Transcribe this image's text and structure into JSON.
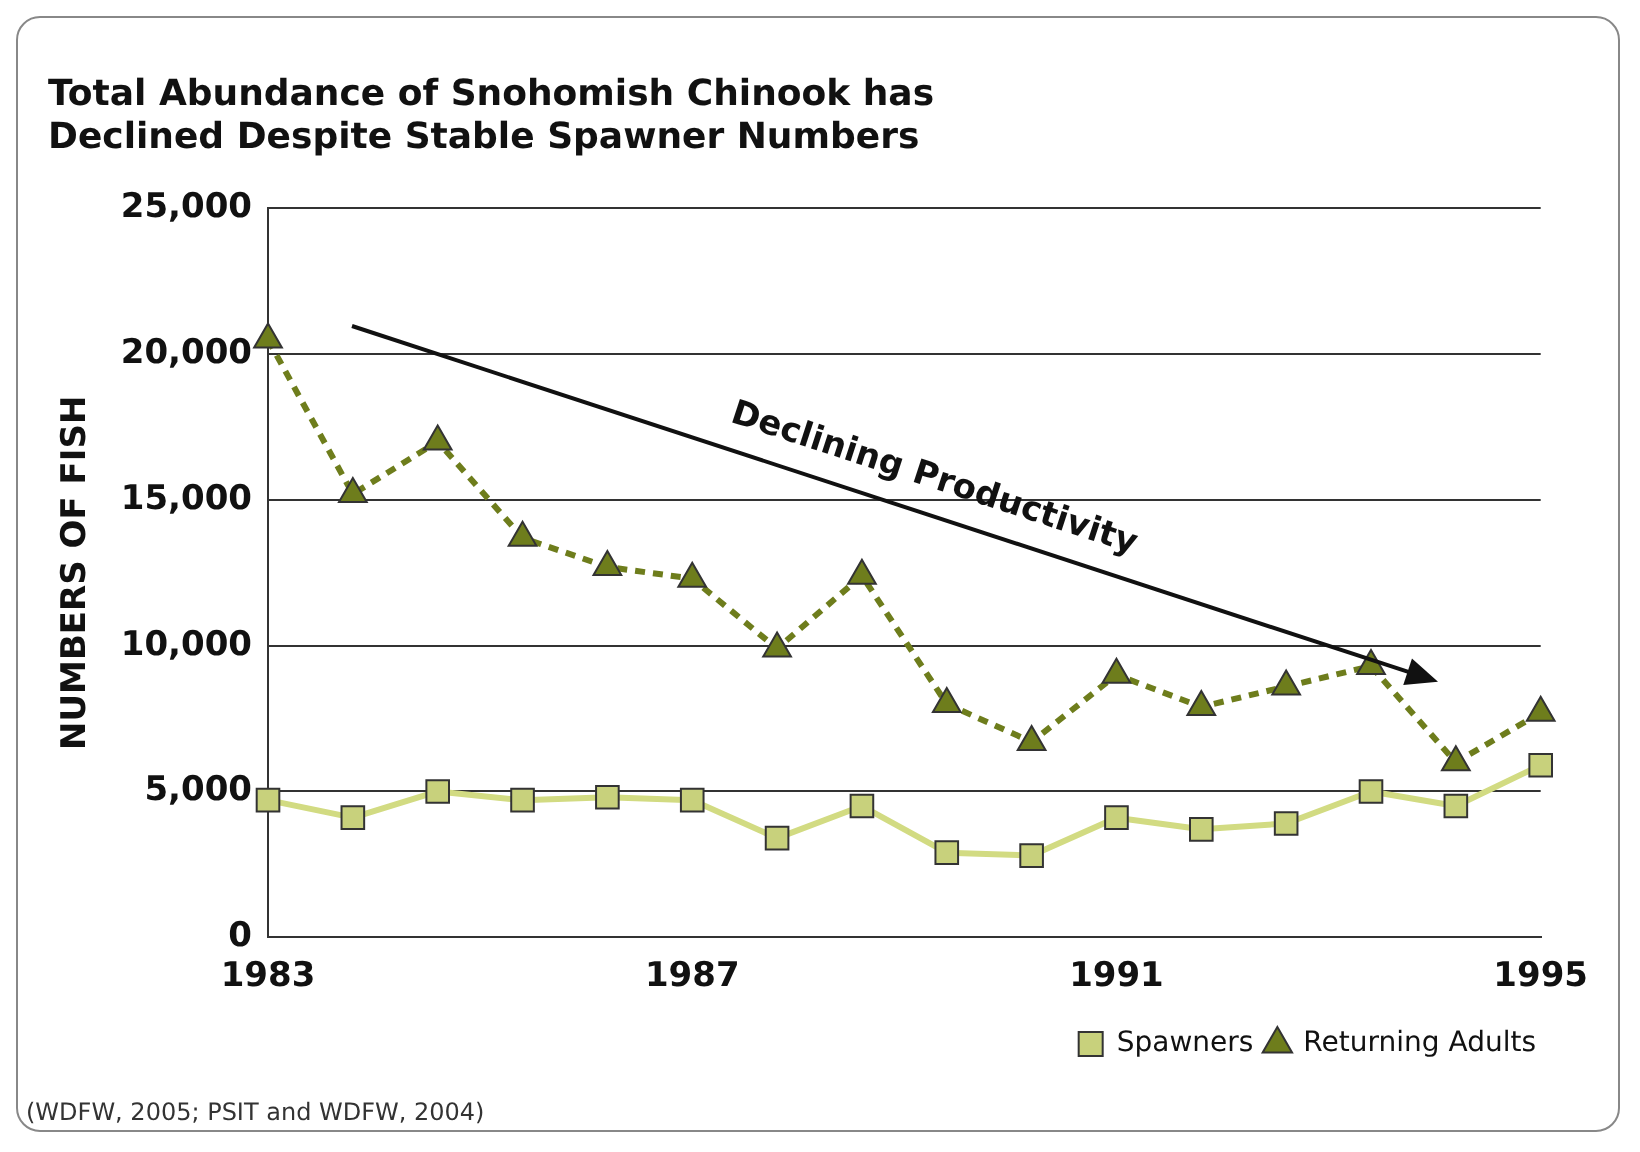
{
  "chart_data": {
    "type": "line",
    "title": "Total Abundance of Snohomish Chinook has\nDeclined Despite Stable Spawner Numbers",
    "ylabel": "NUMBERS OF FISH",
    "categories": [
      "1983",
      null,
      null,
      null,
      null,
      "1987",
      null,
      null,
      null,
      null,
      "1991",
      null,
      null,
      null,
      null,
      "1995"
    ],
    "series": [
      {
        "name": "Spawners",
        "color": "#c8d17c",
        "marker": "square",
        "line_style": "solid",
        "values": [
          4700,
          4100,
          5000,
          4700,
          4800,
          4700,
          3400,
          4500,
          2900,
          2800,
          4100,
          3700,
          3900,
          5000,
          4500,
          5900
        ]
      },
      {
        "name": "Returning Adults",
        "color": "#6e7d1c",
        "marker": "triangle",
        "line_style": "dashed",
        "values": [
          20500,
          15200,
          17000,
          13700,
          12700,
          12300,
          9900,
          12400,
          8000,
          6700,
          9000,
          7900,
          8600,
          9300,
          6000,
          7700
        ]
      }
    ],
    "ylim": [
      0,
      25000
    ],
    "yticks": [
      {
        "value": 0,
        "label": "0"
      },
      {
        "value": 5000,
        "label": "5,000"
      },
      {
        "value": 10000,
        "label": "10,000"
      },
      {
        "value": 15000,
        "label": "15,000"
      },
      {
        "value": 20000,
        "label": "20,000"
      },
      {
        "value": 25000,
        "label": "25,000"
      }
    ],
    "grid": "y",
    "legend": "bottom right",
    "annotations": [
      "Declining Productivity",
      "(WDFW, 2005; PSIT and WDFW, 2004)"
    ]
  }
}
